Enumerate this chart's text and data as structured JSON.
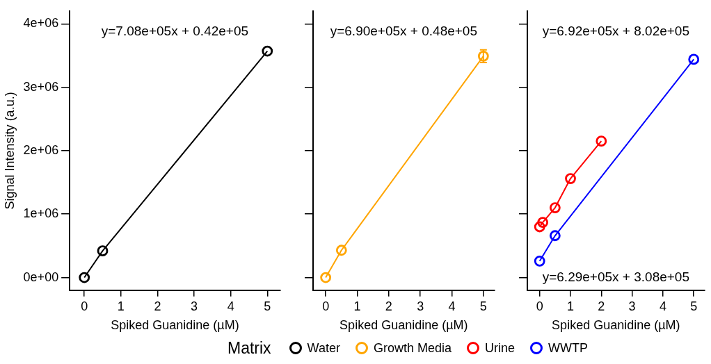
{
  "chart_data": [
    {
      "type": "line",
      "xlabel": "Spiked Guanidine (µM)",
      "ylabel": "Signal Intensity (a.u.)",
      "xlim": [
        -0.4,
        5.35
      ],
      "xticks": [
        0,
        1,
        2,
        3,
        4,
        5
      ],
      "ylim": [
        -200000,
        4200000
      ],
      "yticks": [
        {
          "value": 0,
          "label": "0e+00"
        },
        {
          "value": 1000000,
          "label": "1e+06"
        },
        {
          "value": 2000000,
          "label": "2e+06"
        },
        {
          "value": 3000000,
          "label": "3e+06"
        },
        {
          "value": 4000000,
          "label": "4e+06"
        }
      ],
      "grid": false,
      "marker": "circle",
      "legend": "bottom",
      "legend_title": "Matrix",
      "annotations": [
        "y=7.08e+05x + 0.42e+05"
      ],
      "series": [
        {
          "name": "Water",
          "color": "#000000",
          "x": [
            0,
            0.5,
            5
          ],
          "values": [
            0,
            420000,
            3570000
          ]
        }
      ]
    },
    {
      "type": "line",
      "xlabel": "Spiked Guanidine (µM)",
      "xlim": [
        -0.4,
        5.35
      ],
      "xticks": [
        0,
        1,
        2,
        3,
        4,
        5
      ],
      "ylim": [
        -200000,
        4200000
      ],
      "yticks": [
        {
          "value": 0,
          "label": null
        },
        {
          "value": 1000000,
          "label": null
        },
        {
          "value": 2000000,
          "label": null
        },
        {
          "value": 3000000,
          "label": null
        },
        {
          "value": 4000000,
          "label": null
        }
      ],
      "tick_labels": "x",
      "grid": false,
      "marker": "circle",
      "legend": "bottom",
      "annotations": [
        "y=6.90e+05x + 0.48e+05"
      ],
      "series": [
        {
          "name": "Growth Media",
          "color": "#ffa500",
          "x": [
            0,
            0.5,
            5
          ],
          "values": [
            0,
            430000,
            3490000
          ],
          "errors": [
            null,
            null,
            100000
          ]
        }
      ]
    },
    {
      "type": "line",
      "xlabel": "Spiked Guanidine (µM)",
      "xlim": [
        -0.4,
        5.35
      ],
      "xticks": [
        0,
        1,
        2,
        3,
        4,
        5
      ],
      "ylim": [
        -200000,
        4200000
      ],
      "yticks": [
        {
          "value": 0,
          "label": null
        },
        {
          "value": 1000000,
          "label": null
        },
        {
          "value": 2000000,
          "label": null
        },
        {
          "value": 3000000,
          "label": null
        },
        {
          "value": 4000000,
          "label": null
        }
      ],
      "tick_labels": "x",
      "grid": false,
      "marker": "circle",
      "legend": "bottom",
      "annotations": [
        "y=6.92e+05x + 8.02e+05",
        "y=6.29e+05x + 3.08e+05"
      ],
      "series": [
        {
          "name": "Urine",
          "color": "#ff0000",
          "x": [
            0,
            0.1,
            0.5,
            1,
            2
          ],
          "values": [
            800000,
            870000,
            1100000,
            1560000,
            2150000
          ]
        },
        {
          "name": "WWTP",
          "color": "#0000ff",
          "x": [
            0,
            0.5,
            5
          ],
          "values": [
            260000,
            660000,
            3440000
          ]
        }
      ]
    }
  ]
}
